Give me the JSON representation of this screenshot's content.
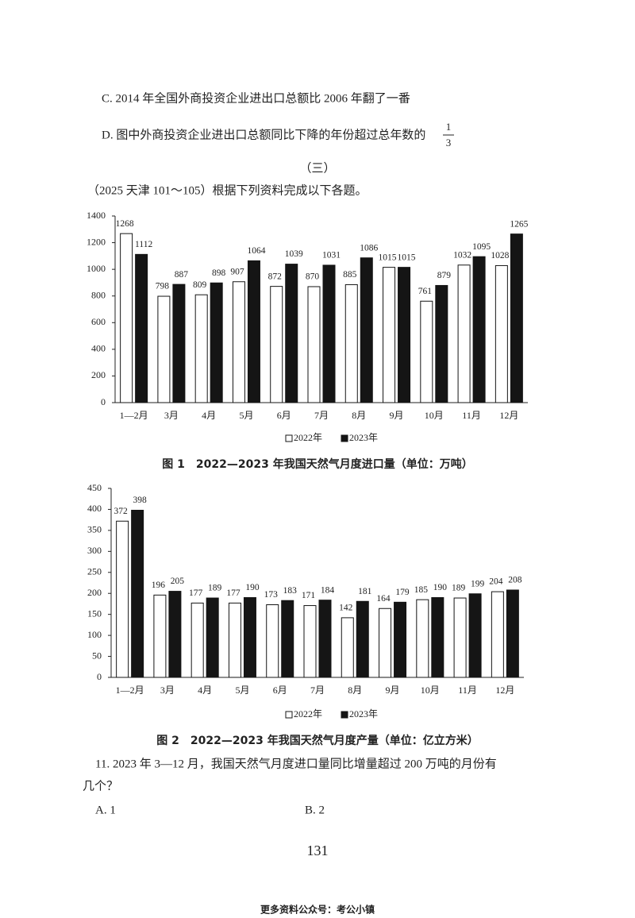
{
  "document": {
    "option_c": "C. 2014 年全国外商投资企业进出口总额比 2006 年翻了一番",
    "option_d": "D. 图中外商投资企业进出口总额同比下降的年份超过总年数的",
    "option_d_numerator": "1",
    "option_d_denominator": "3",
    "section": "（三）",
    "intro": "（2025 天津 101～105）根据下列资料完成以下各题。",
    "question_line1": "11. 2023 年 3—12 月，我国天然气月度进口量同比增量超过 200 万吨的月份有",
    "question_line2": "几个？",
    "answer_a": "A. 1",
    "answer_b": "B. 2",
    "page_number": "131",
    "footer": "更多资料公众号：考公小镇"
  },
  "chart_data": [
    {
      "type": "bar",
      "title": "图 1　2022—2023 年我国天然气月度进口量（单位：万吨）",
      "categories": [
        "1—2月",
        "3月",
        "4月",
        "5月",
        "6月",
        "7月",
        "8月",
        "9月",
        "10月",
        "11月",
        "12月"
      ],
      "series": [
        {
          "name": "2022年",
          "color": "#ffffff",
          "values": [
            1268,
            798,
            809,
            907,
            872,
            870,
            885,
            1015,
            761,
            1032,
            1028
          ]
        },
        {
          "name": "2023年",
          "color": "#151515",
          "values": [
            1112,
            887,
            898,
            1064,
            1039,
            1031,
            1086,
            1015,
            879,
            1095,
            1265
          ]
        }
      ],
      "ylim": [
        0,
        1400
      ],
      "yticks": [
        0,
        200,
        400,
        600,
        800,
        1000,
        1200,
        1400
      ],
      "grid": false,
      "legend": "bottom"
    },
    {
      "type": "bar",
      "title": "图 2　2022—2023 年我国天然气月度产量（单位：亿立方米）",
      "categories": [
        "1—2月",
        "3月",
        "4月",
        "5月",
        "6月",
        "7月",
        "8月",
        "9月",
        "10月",
        "11月",
        "12月"
      ],
      "series": [
        {
          "name": "2022年",
          "color": "#ffffff",
          "values": [
            372,
            196,
            177,
            177,
            173,
            171,
            142,
            164,
            185,
            189,
            204
          ]
        },
        {
          "name": "2023年",
          "color": "#151515",
          "values": [
            398,
            205,
            189,
            190,
            183,
            184,
            181,
            179,
            190,
            199,
            208
          ]
        }
      ],
      "ylim": [
        0,
        450
      ],
      "yticks": [
        0,
        50,
        100,
        150,
        200,
        250,
        300,
        350,
        400,
        450
      ],
      "grid": false,
      "legend": "bottom"
    }
  ]
}
